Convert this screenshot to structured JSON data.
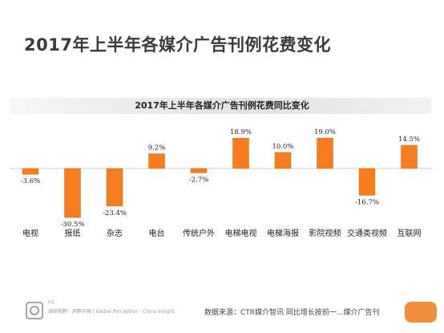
{
  "page": {
    "title": "2017年上半年各媒介广告刊例花费变化",
    "page_number": "P3",
    "footer_left": "调研视野 · 洞察中国 | Global Perception · China Insight",
    "source_note": "数据来源：CTR媒介智讯   同比增长按前一...媒介广告刊"
  },
  "colors": {
    "bar": "#f57c1f",
    "band": "#e2e2e2",
    "watermark": "#f07a1a"
  },
  "chart_data": {
    "type": "bar",
    "title": "2017年上半年各媒介广告刊例花费同比变化",
    "categories": [
      "电视",
      "报纸",
      "杂志",
      "电台",
      "传统户外",
      "电梯电视",
      "电梯海报",
      "影院视频",
      "交通类视频",
      "互联网"
    ],
    "values": [
      -3.6,
      -30.5,
      -23.4,
      9.2,
      -2.7,
      18.9,
      10.0,
      19.0,
      -16.7,
      14.5
    ],
    "value_labels": [
      "-3.6%",
      "-30.5%",
      "-23.4%",
      "9.2%",
      "-2.7%",
      "18.9%",
      "10.0%",
      "19.0%",
      "-16.7%",
      "14.5%"
    ],
    "unit": "%",
    "ylim": [
      -35,
      25
    ],
    "grid": false,
    "legend": "none"
  }
}
